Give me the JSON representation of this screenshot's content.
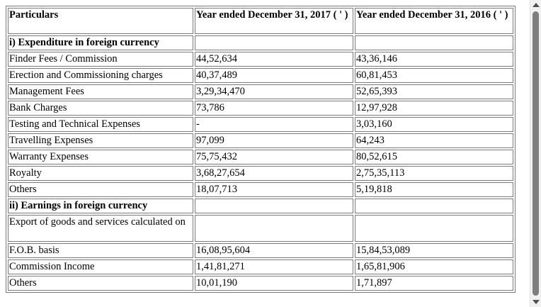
{
  "table": {
    "headers": {
      "particulars": "Particulars",
      "year_2017": "Year ended December 31, 2017 ( ' )",
      "year_2016": "Year ended December 31, 2016 ( ' )"
    },
    "rows": [
      {
        "label": "i) Expenditure in foreign currency",
        "v2017": "",
        "v2016": "",
        "section": true
      },
      {
        "label": "Finder Fees / Commission",
        "v2017": "44,52,634",
        "v2016": "43,36,146"
      },
      {
        "label": "Erection and Commissioning charges",
        "v2017": "40,37,489",
        "v2016": "60,81,453"
      },
      {
        "label": "Management Fees",
        "v2017": "3,29,34,470",
        "v2016": "52,65,393"
      },
      {
        "label": "Bank Charges",
        "v2017": "73,786",
        "v2016": "12,97,928"
      },
      {
        "label": "Testing and Technical Expenses",
        "v2017": "-",
        "v2016": "3,03,160"
      },
      {
        "label": "Travelling Expenses",
        "v2017": "97,099",
        "v2016": "64,243"
      },
      {
        "label": "Warranty Expenses",
        "v2017": "75,75,432",
        "v2016": "80,52,615"
      },
      {
        "label": "Royalty",
        "v2017": "3,68,27,654",
        "v2016": "2,75,35,113"
      },
      {
        "label": "Others",
        "v2017": "18,07,713",
        "v2016": "5,19,818"
      },
      {
        "label": "ii) Earnings in foreign currency",
        "v2017": "",
        "v2016": "",
        "section": true
      },
      {
        "label": "Export of goods and services calculated on",
        "v2017": "",
        "v2016": ""
      },
      {
        "label": "F.O.B. basis",
        "v2017": "16,08,95,604",
        "v2016": "15,84,53,089"
      },
      {
        "label": "Commission Income",
        "v2017": "1,41,81,271",
        "v2016": "1,65,81,906"
      },
      {
        "label": "Others",
        "v2017": "10,01,190",
        "v2016": "1,71,897"
      }
    ]
  },
  "scrollbar": {
    "up_icon": "scroll-up-arrow-icon",
    "down_icon": "scroll-down-arrow-icon"
  }
}
